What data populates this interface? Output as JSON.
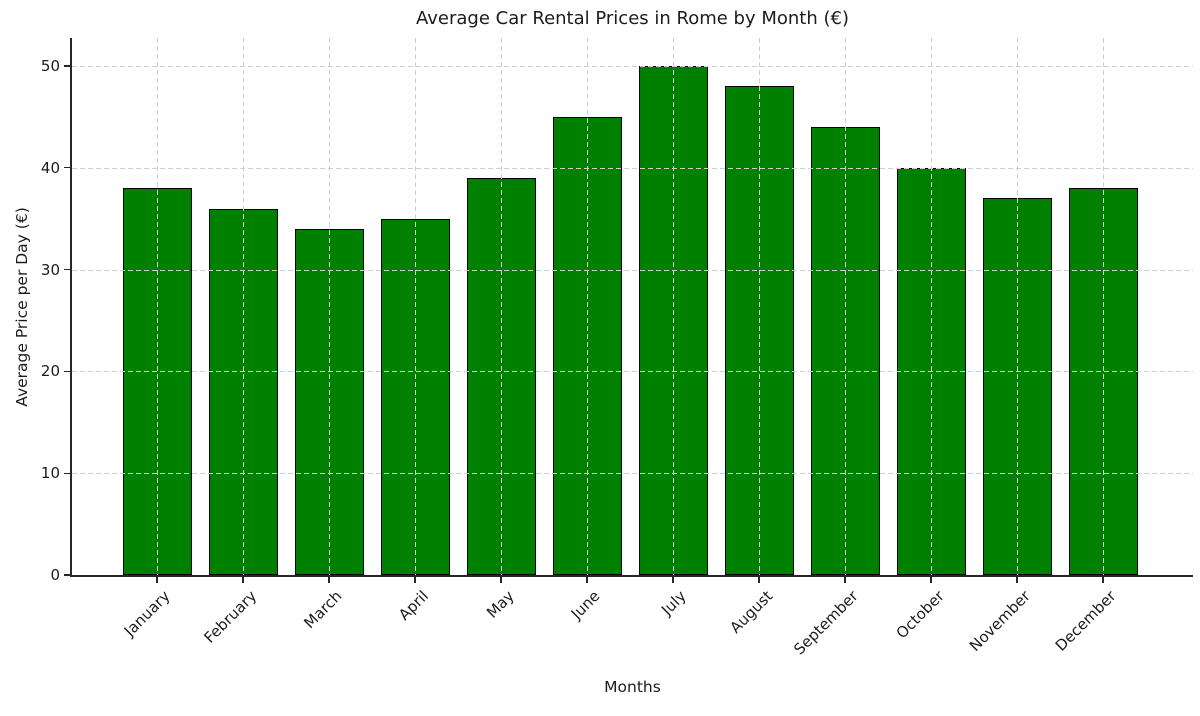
{
  "chart_data": {
    "type": "bar",
    "title": "Average Car Rental Prices in Rome by Month (€)",
    "xlabel": "Months",
    "ylabel": "Average Price per Day (€)",
    "categories": [
      "January",
      "February",
      "March",
      "April",
      "May",
      "June",
      "July",
      "August",
      "September",
      "October",
      "November",
      "December"
    ],
    "values": [
      38,
      36,
      34,
      35,
      39,
      45,
      50,
      48,
      44,
      40,
      37,
      38
    ],
    "yticks": [
      0,
      10,
      20,
      30,
      40,
      50
    ],
    "ylim": [
      0,
      52.5
    ],
    "grid": "dashed, light gray, drawn over bars",
    "legend": "none",
    "colors": {
      "bar_fill": "#008000",
      "bar_edge": "#000000",
      "grid": "#cfcfcf",
      "text": "#1c1c1c",
      "spine": "#262626",
      "background": "#ffffff"
    }
  }
}
